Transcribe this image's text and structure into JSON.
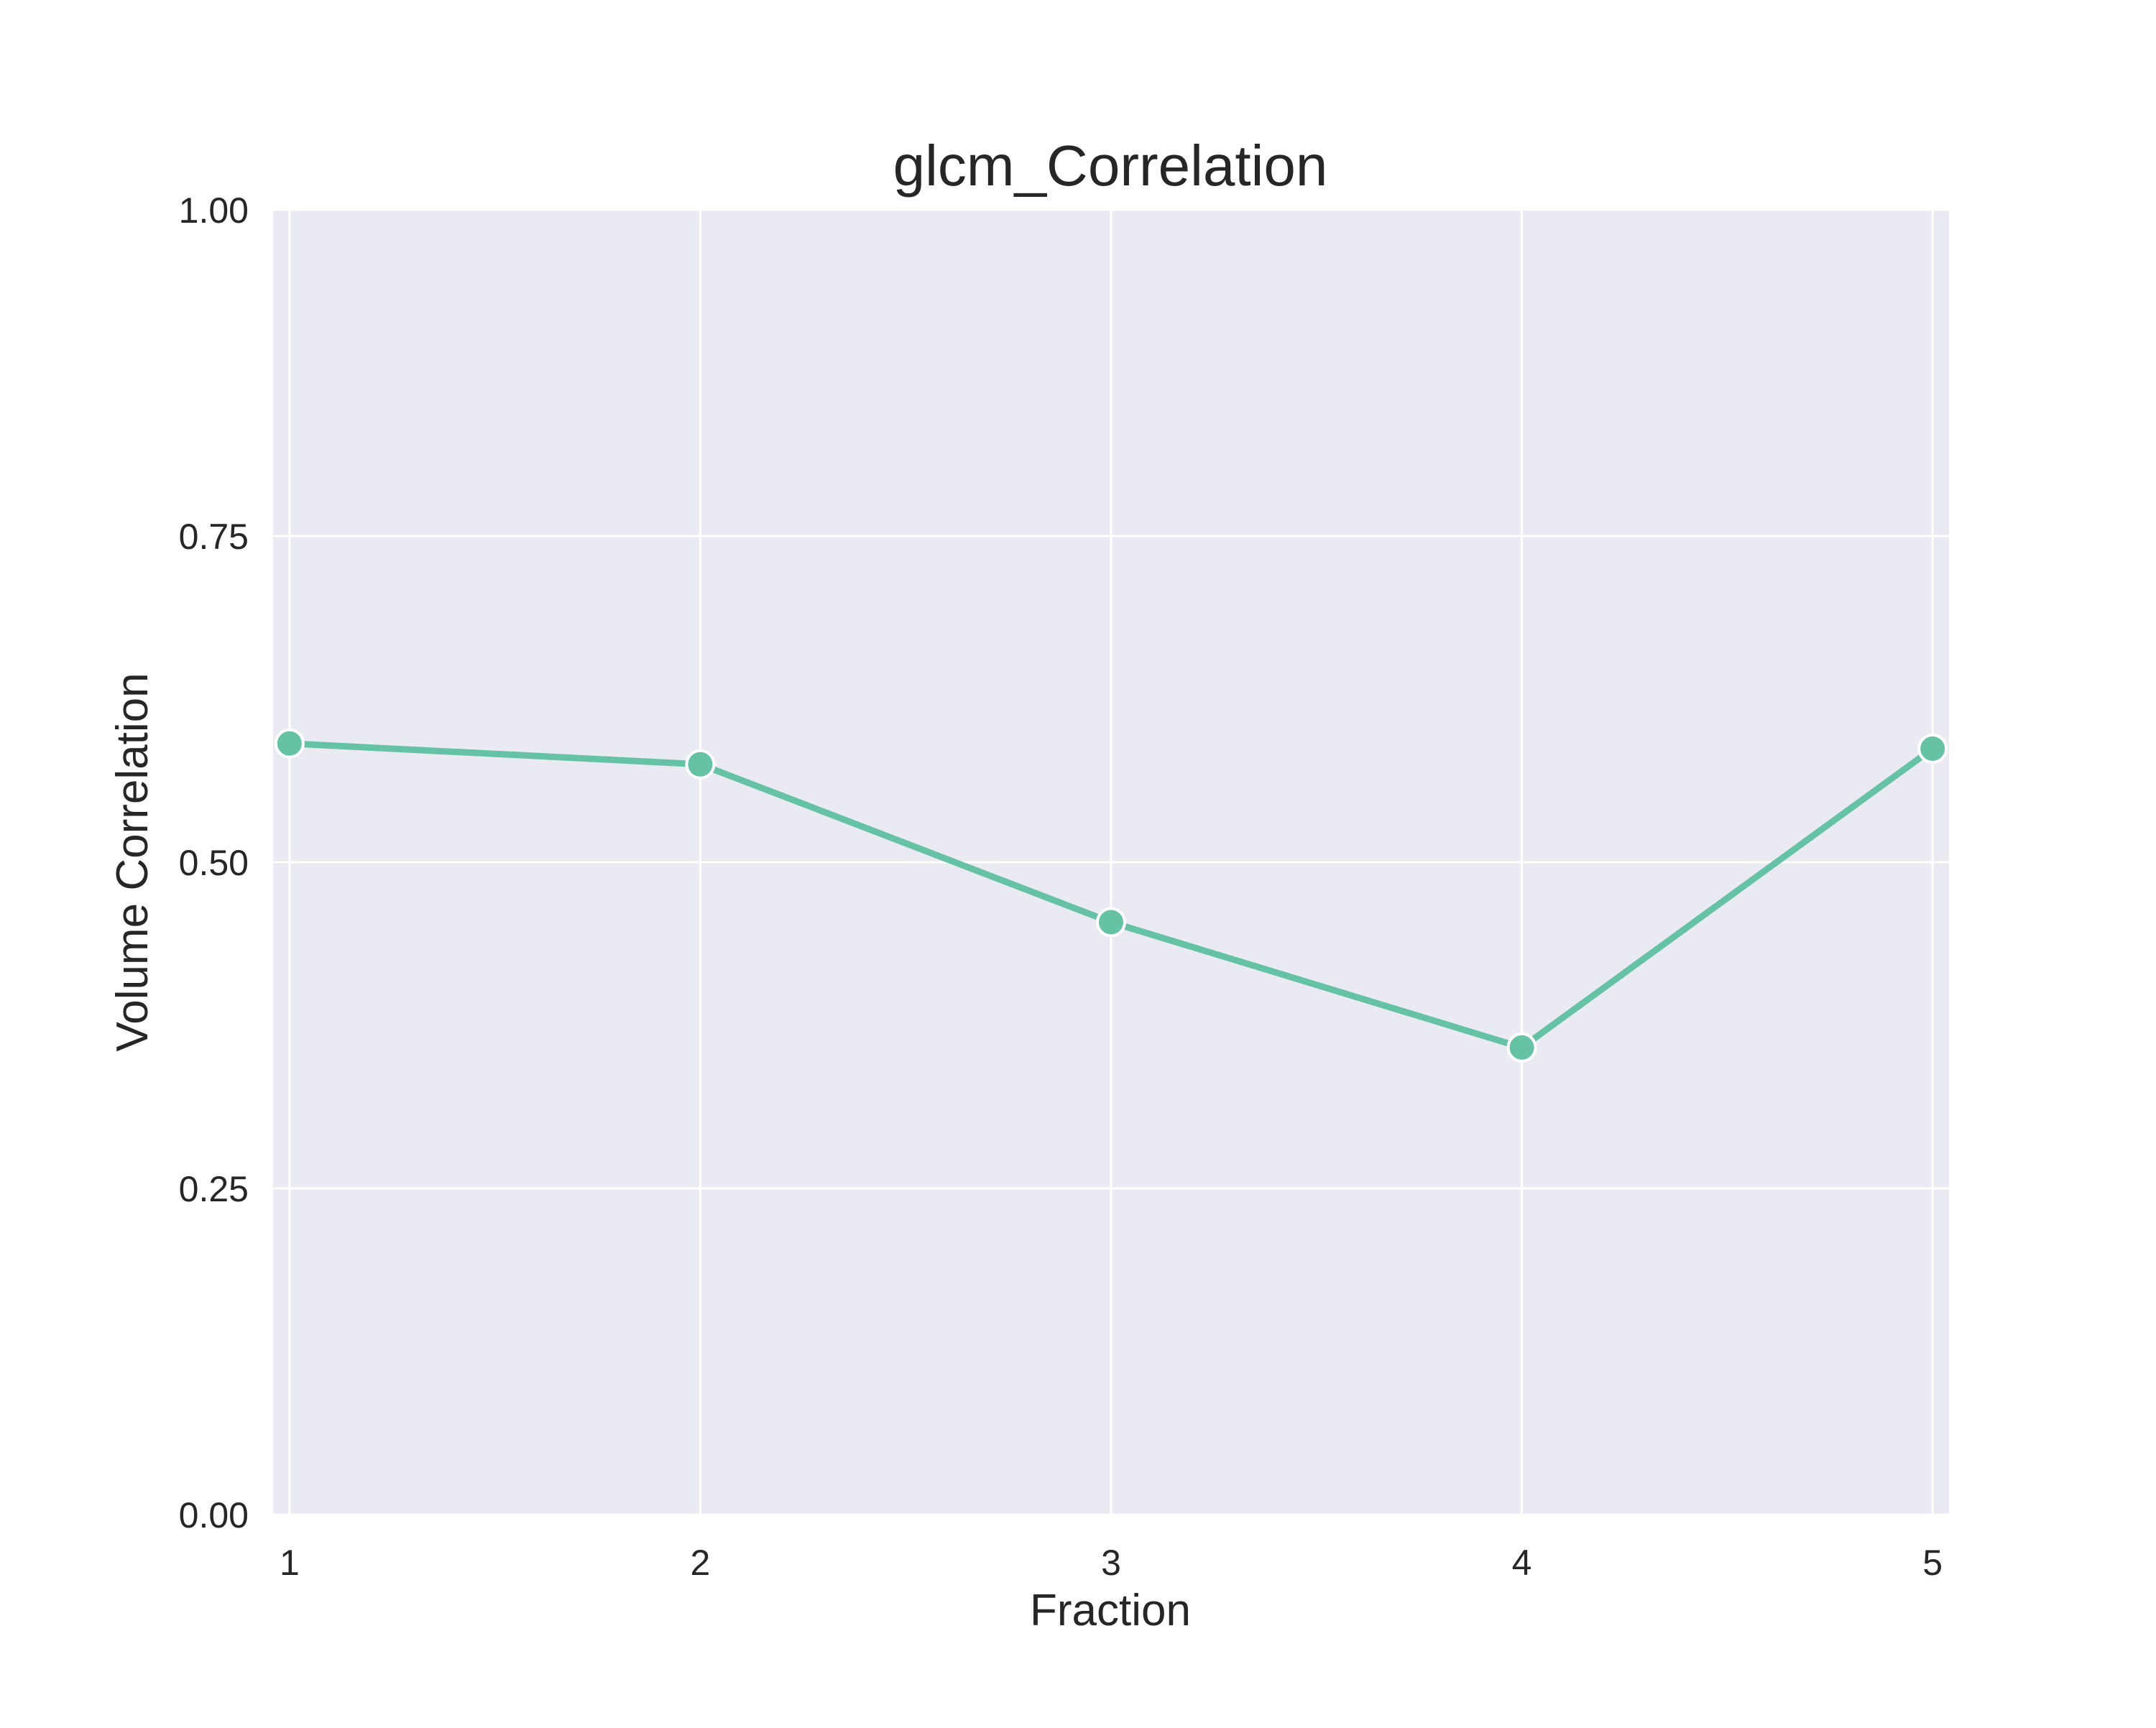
{
  "chart_data": {
    "type": "line",
    "title": "glcm_Correlation",
    "xlabel": "Fraction",
    "ylabel": "Volume Correlation",
    "x": [
      1,
      2,
      3,
      4,
      5
    ],
    "x_ticks": [
      "1",
      "2",
      "3",
      "4",
      "5"
    ],
    "y_ticks": [
      "0.00",
      "0.25",
      "0.50",
      "0.75",
      "1.00"
    ],
    "ylim": [
      0,
      1
    ],
    "xlim": [
      0.96,
      5.04
    ],
    "grid": true,
    "background": "#eaeaf2",
    "grid_color": "#ffffff",
    "series": [
      {
        "color": "#66c2a5",
        "marker": "circle",
        "values": [
          0.591,
          0.575,
          0.454,
          0.358,
          0.587
        ]
      }
    ]
  }
}
